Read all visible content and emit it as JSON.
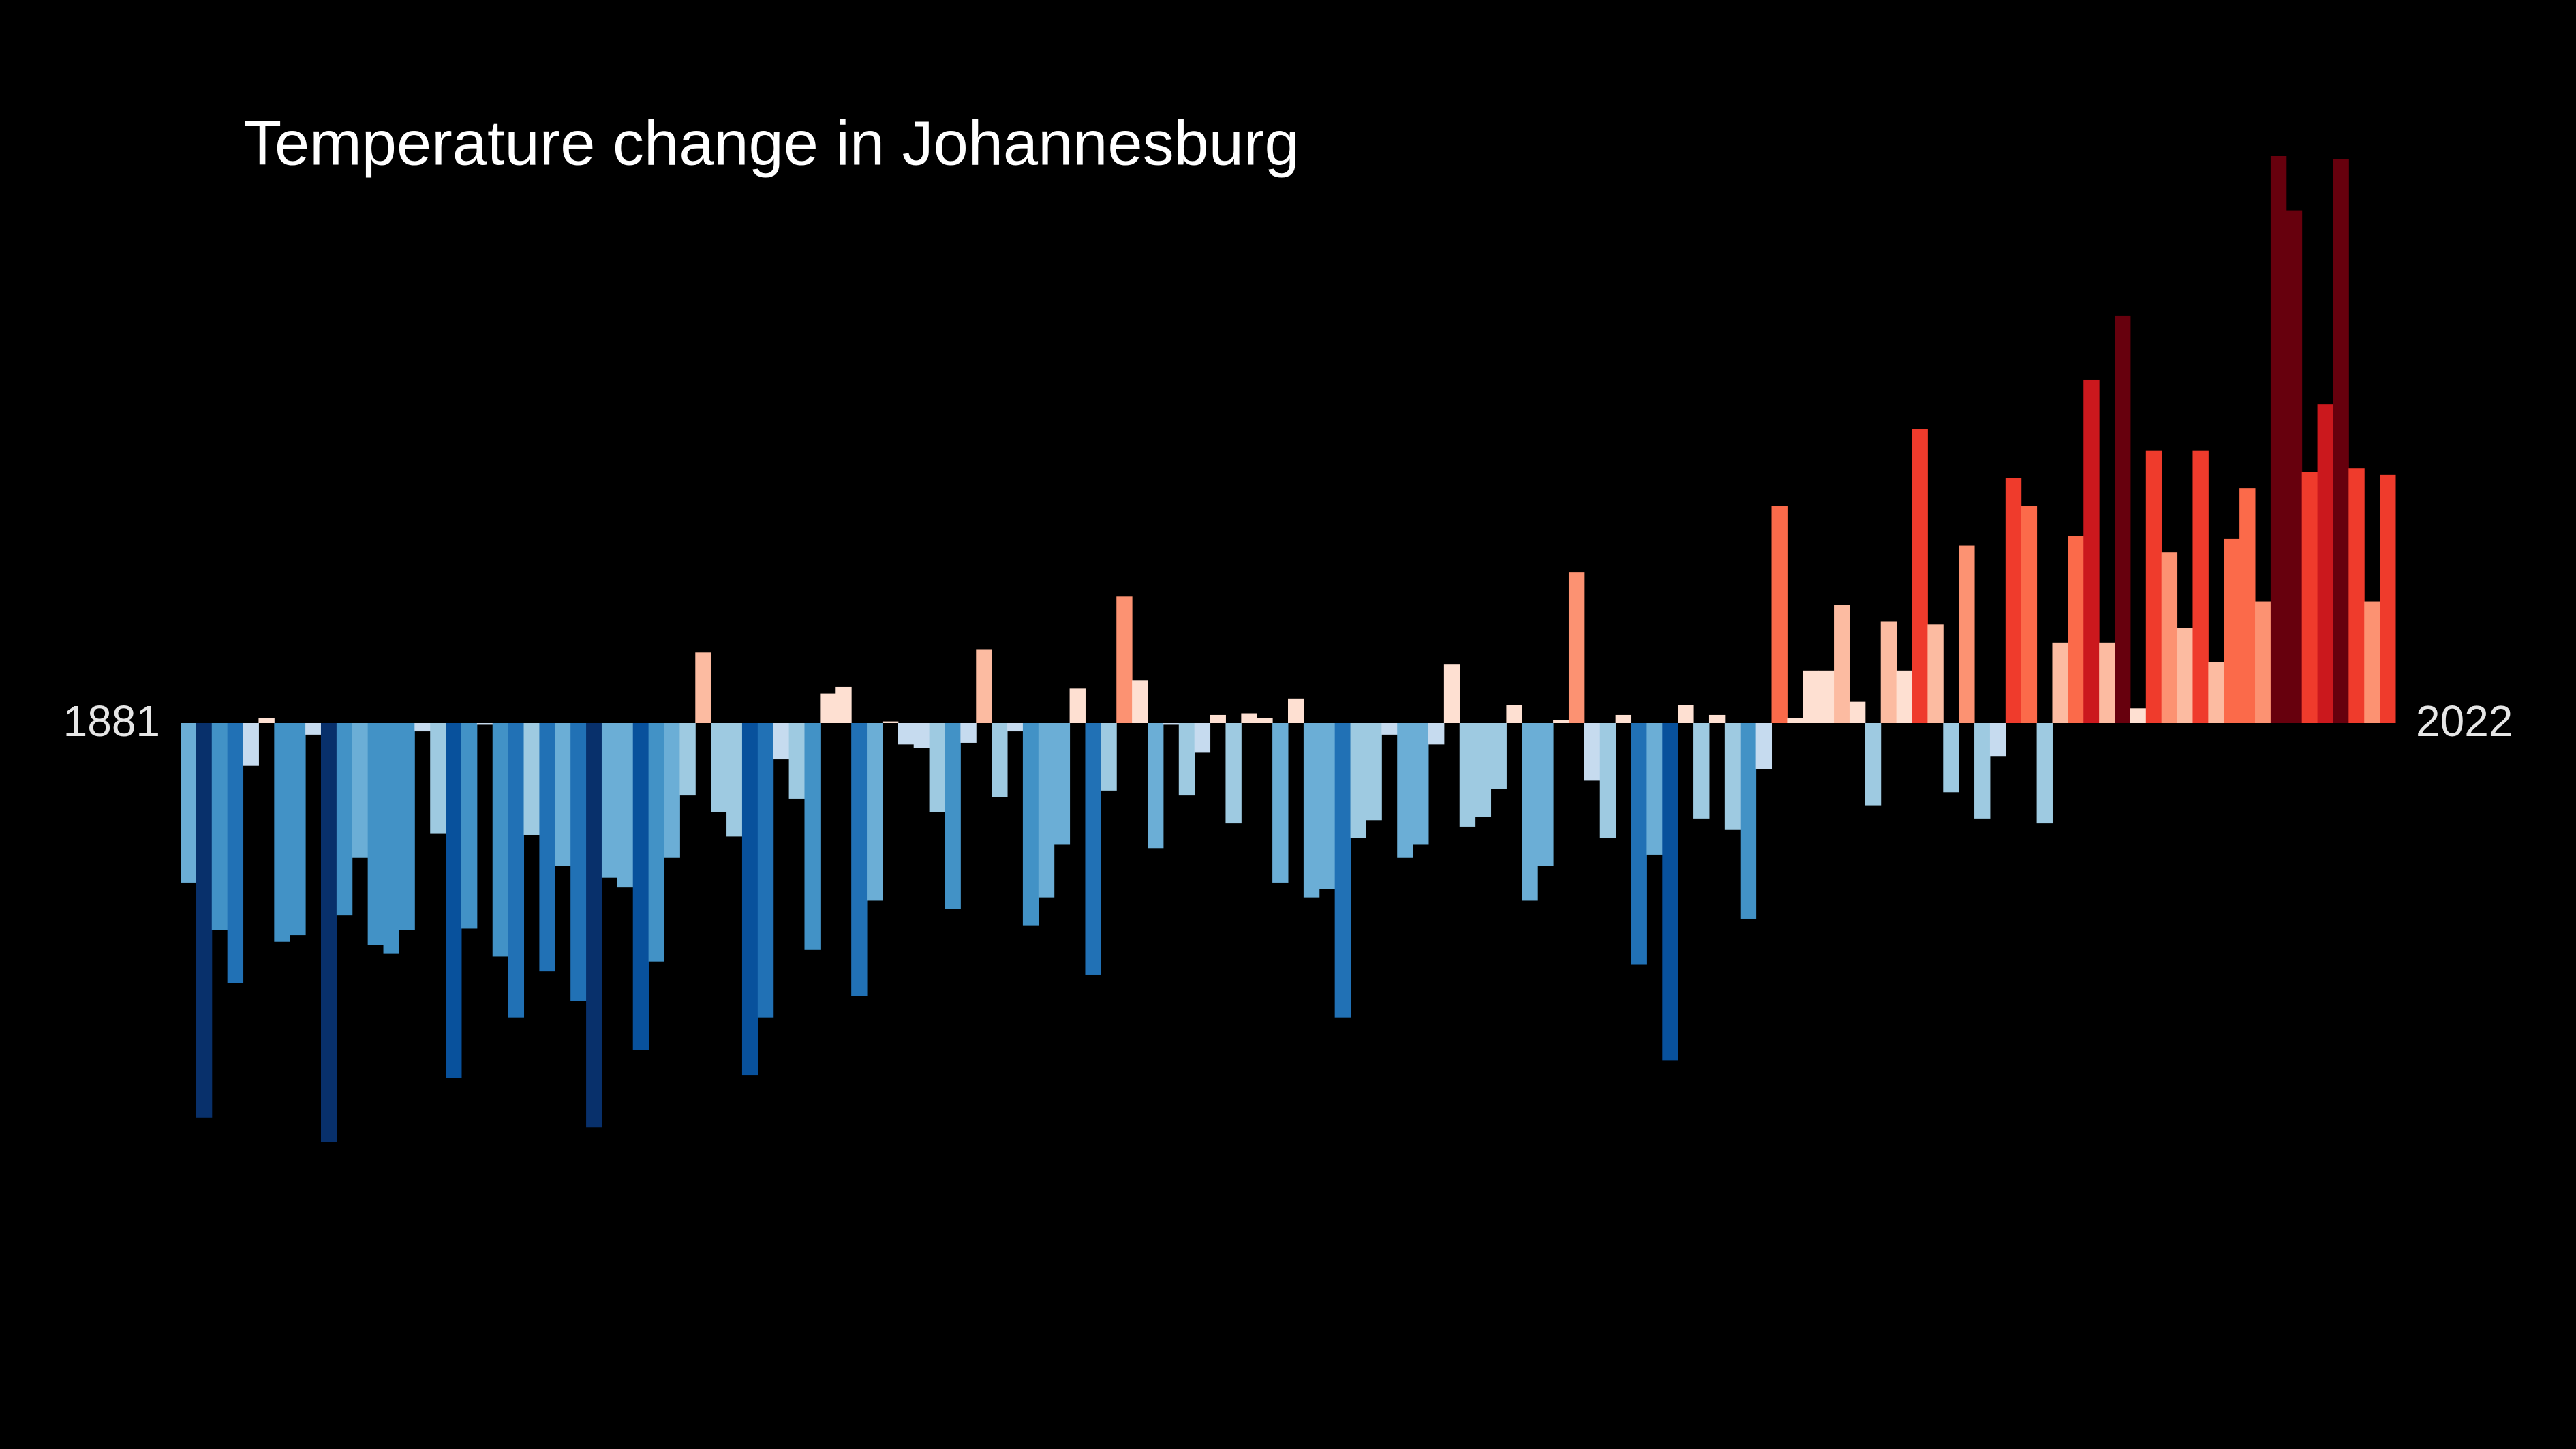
{
  "chart_data": {
    "type": "bar",
    "title": "Temperature change in Johannesburg",
    "categories": [
      "1881",
      null,
      null,
      null,
      null,
      null,
      null,
      null,
      null,
      null,
      null,
      null,
      null,
      null,
      null,
      null,
      null,
      null,
      null,
      null,
      null,
      null,
      null,
      null,
      null,
      null,
      null,
      null,
      null,
      null,
      null,
      null,
      null,
      null,
      null,
      null,
      null,
      null,
      null,
      null,
      null,
      null,
      null,
      null,
      null,
      null,
      null,
      null,
      null,
      null,
      null,
      null,
      null,
      null,
      null,
      null,
      null,
      null,
      null,
      null,
      null,
      null,
      null,
      null,
      null,
      null,
      null,
      null,
      null,
      null,
      null,
      null,
      null,
      null,
      null,
      null,
      null,
      null,
      null,
      null,
      null,
      null,
      null,
      null,
      null,
      null,
      null,
      null,
      null,
      null,
      null,
      null,
      null,
      null,
      null,
      null,
      null,
      null,
      null,
      null,
      null,
      null,
      null,
      null,
      null,
      null,
      null,
      null,
      null,
      null,
      null,
      null,
      null,
      null,
      null,
      null,
      null,
      null,
      null,
      null,
      null,
      null,
      null,
      null,
      null,
      null,
      null,
      null,
      null,
      null,
      null,
      null,
      null,
      null,
      null,
      null,
      null,
      null,
      null,
      null,
      null,
      "2022"
    ],
    "values": [
      -0.97,
      -2.4,
      -1.26,
      -1.58,
      -0.26,
      0.03,
      -1.33,
      -1.29,
      -0.07,
      -2.55,
      -1.17,
      -0.82,
      -1.35,
      -1.4,
      -1.26,
      -0.05,
      -0.67,
      -2.16,
      -1.25,
      -0.01,
      -1.42,
      -1.79,
      -0.68,
      -1.51,
      -0.87,
      -1.69,
      -2.46,
      -0.94,
      -1.0,
      -1.99,
      -1.45,
      -0.82,
      -0.44,
      0.43,
      -0.54,
      -0.69,
      -2.14,
      -1.79,
      -0.22,
      -0.46,
      -1.38,
      0.18,
      0.22,
      -1.66,
      -1.08,
      0.01,
      -0.13,
      -0.15,
      -0.54,
      -1.13,
      -0.12,
      0.45,
      -0.45,
      -0.05,
      -1.23,
      -1.06,
      -0.74,
      0.21,
      -1.53,
      -0.41,
      0.77,
      0.26,
      -0.76,
      -0.01,
      -0.44,
      -0.18,
      0.05,
      -0.61,
      0.06,
      0.03,
      -0.97,
      0.15,
      -1.06,
      -1.01,
      -1.79,
      -0.7,
      -0.59,
      -0.07,
      -0.82,
      -0.74,
      -0.13,
      0.36,
      -0.63,
      -0.57,
      -0.4,
      0.11,
      -1.08,
      -0.87,
      0.02,
      0.92,
      -0.35,
      -0.7,
      0.05,
      -1.47,
      -0.8,
      -2.05,
      0.11,
      -0.58,
      0.05,
      -0.65,
      -1.19,
      -0.28,
      1.32,
      0.03,
      0.32,
      0.32,
      0.72,
      0.13,
      -0.5,
      0.62,
      0.32,
      1.79,
      0.6,
      -0.42,
      1.08,
      -0.58,
      -0.2,
      1.49,
      1.32,
      -0.61,
      0.49,
      1.14,
      2.09,
      0.49,
      2.48,
      0.09,
      1.66,
      1.04,
      0.58,
      1.66,
      0.37,
      1.12,
      1.43,
      0.74,
      3.45,
      3.12,
      1.53,
      1.94,
      3.43,
      1.55,
      0.74,
      1.51
    ],
    "colormap": [
      "#08306b",
      "#08519c",
      "#2171b5",
      "#4292c6",
      "#6baed6",
      "#9ecae1",
      "#c6dbef",
      "#fee0d2",
      "#fcbba1",
      "#fc9272",
      "#fb6a4a",
      "#ef3b2c",
      "#cb181d",
      "#67000d"
    ]
  }
}
